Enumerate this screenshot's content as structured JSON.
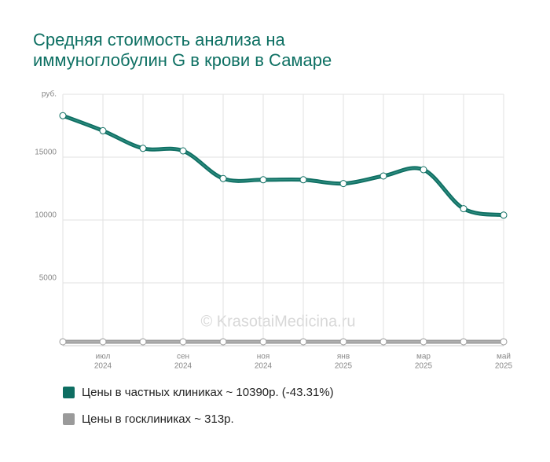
{
  "chart_data": {
    "type": "line",
    "title": [
      "Средняя стоимость анализа на",
      "иммуноглобулин G в крови в Самаре"
    ],
    "watermark": "© KrasotaiMedicina.ru",
    "categories": [
      null,
      "июл",
      null,
      "сен",
      null,
      "ноя",
      null,
      "янв",
      null,
      "мар",
      null,
      "май"
    ],
    "category_years": [
      null,
      "2024",
      null,
      "2024",
      null,
      "2024",
      null,
      "2025",
      null,
      "2025",
      null,
      "2025"
    ],
    "ylim": [
      0,
      20000
    ],
    "yticks": [
      5000,
      10000,
      15000,
      {
        "value": 20000,
        "label": "руб."
      }
    ],
    "grid": true,
    "series": [
      {
        "name": "Цены в частных клиниках ~ 10390р. (-43.31%)",
        "color": "#0e6e62",
        "values": [
          18300,
          17100,
          15700,
          15500,
          13300,
          13200,
          13200,
          12900,
          13500,
          14000,
          10900,
          10390
        ]
      },
      {
        "name": "Цены в госклиниках ~ 313р.",
        "color": "#9a9a9a",
        "values": [
          313,
          313,
          313,
          313,
          313,
          313,
          313,
          313,
          313,
          313,
          313,
          313
        ]
      }
    ]
  }
}
